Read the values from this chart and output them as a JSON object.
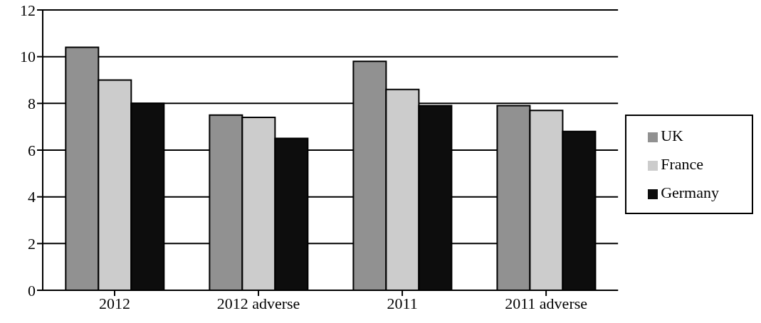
{
  "chart_data": {
    "type": "bar",
    "categories": [
      "2012",
      "2012 adverse",
      "2011",
      "2011 adverse"
    ],
    "series": [
      {
        "name": "UK",
        "color": "#919191",
        "values": [
          10.4,
          7.5,
          9.8,
          7.9
        ]
      },
      {
        "name": "France",
        "color": "#cccccc",
        "values": [
          9.0,
          7.4,
          8.6,
          7.7
        ]
      },
      {
        "name": "Germany",
        "color": "#0d0d0d",
        "values": [
          8.0,
          6.5,
          7.9,
          6.8
        ]
      }
    ],
    "ylim": [
      0,
      12
    ],
    "yticks": [
      0,
      2,
      4,
      6,
      8,
      10,
      12
    ],
    "grid": "y",
    "legend": "right"
  }
}
